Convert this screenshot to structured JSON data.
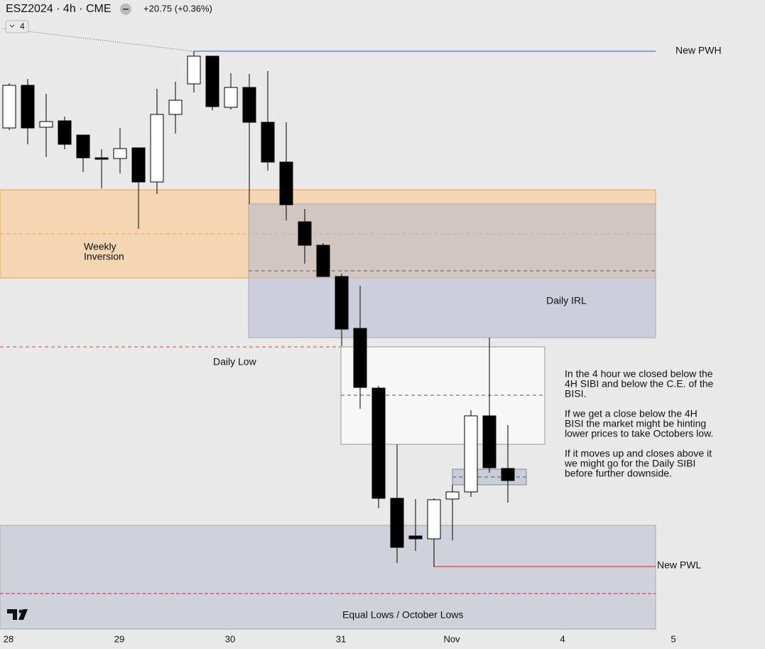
{
  "header": {
    "symbol": "ESZ2024 · 4h · CME",
    "change": "+20.75 (+0.36%)",
    "collapse": "4"
  },
  "annotations": {
    "pwh": "New PWH",
    "weekly": [
      "Weekly",
      "Inversion"
    ],
    "irl": "Daily IRL",
    "daily_low": "Daily Low",
    "pwl": "New PWL",
    "equal_lows": "Equal Lows / October Lows",
    "note": [
      "In the 4 hour we closed below the",
      "4H SIBI and below the C.E. of the",
      "BISI.",
      "",
      "If we get a close below the 4H",
      "BISI the market might be hinting",
      "lower prices to take Octobers low.",
      "",
      "If it moves up and closes above it",
      "we might go for the Daily SIBI",
      "before further downside."
    ]
  },
  "chart_data": {
    "type": "candlestick",
    "categories": [
      "28",
      null,
      null,
      null,
      null,
      null,
      "29",
      null,
      null,
      null,
      null,
      null,
      "30",
      null,
      null,
      null,
      null,
      null,
      "31",
      null,
      null,
      null,
      null,
      null,
      "Nov",
      null,
      null,
      null,
      null,
      null,
      "4",
      null,
      null,
      null,
      null,
      null,
      "5"
    ],
    "open": [
      5856.25,
      5871.25,
      5856.5,
      5858.75,
      5853.75,
      5845.75,
      5845.5,
      5849.25,
      5837.25,
      5861.0,
      5871.75,
      5881.5,
      5863.5,
      5870.5,
      5858.25,
      5844.25,
      5823.25,
      5815.0,
      5804.0,
      5785.75,
      5764.75,
      5726.0,
      5712.75,
      5711.75,
      5725.75,
      5728.25,
      5755.0,
      5736.5,
      null,
      null,
      null,
      null,
      null,
      null,
      null,
      null,
      null
    ],
    "high": [
      5872.0,
      5873.5,
      5868.25,
      5860.25,
      5853.75,
      5848.75,
      5856.25,
      5849.25,
      5870.0,
      5872.5,
      5883.25,
      5881.5,
      5875.5,
      5875.25,
      5876.25,
      5858.25,
      5827.75,
      5815.75,
      5805.0,
      5800.75,
      5765.5,
      5745.0,
      5725.75,
      5726.0,
      5730.75,
      5757.0,
      5782.5,
      5751.75,
      null,
      null,
      null,
      null,
      null,
      null,
      null,
      null,
      null
    ],
    "low": [
      5855.5,
      5850.5,
      5846.0,
      5848.75,
      5840.75,
      5835.0,
      5840.25,
      5820.75,
      5833.0,
      5854.25,
      5868.75,
      5862.5,
      5862.75,
      5829.5,
      5841.25,
      5823.75,
      5808.5,
      5804.0,
      5779.5,
      5757.5,
      5722.5,
      5703.25,
      5707.5,
      5702.0,
      5711.25,
      5726.5,
      5735.0,
      5724.5,
      null,
      null,
      null,
      null,
      null,
      null,
      null,
      null,
      null
    ],
    "close": [
      5871.25,
      5856.25,
      5858.5,
      5850.5,
      5845.75,
      5845.25,
      5849.0,
      5837.25,
      5861.0,
      5866.0,
      5881.5,
      5863.75,
      5870.5,
      5858.25,
      5844.25,
      5829.25,
      5815.0,
      5804.0,
      5785.5,
      5765.0,
      5726.0,
      5708.75,
      5711.75,
      5725.5,
      5728.25,
      5755.0,
      5736.75,
      5732.25,
      null,
      null,
      null,
      null,
      null,
      null,
      null,
      null,
      null
    ],
    "up_color": "#ffffff",
    "down_color": "#000000",
    "ylim": [
      5680,
      5901.25
    ]
  }
}
